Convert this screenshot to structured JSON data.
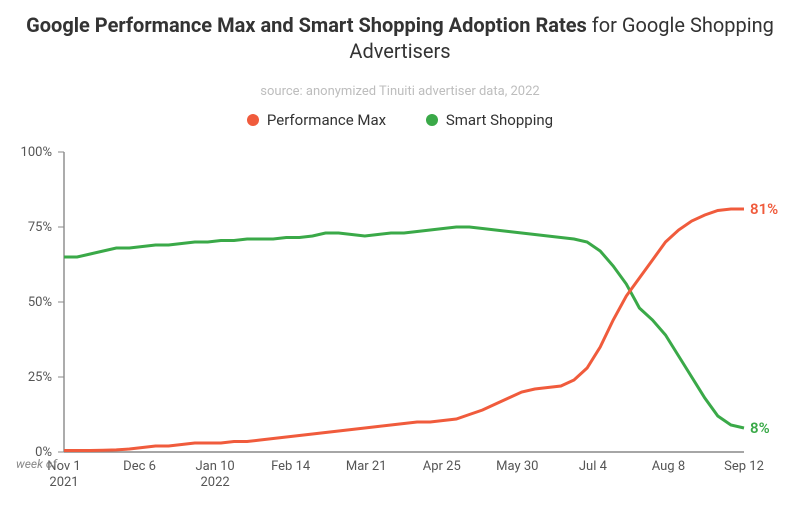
{
  "title_bold": "Google Performance Max and Smart Shopping Adoption Rates",
  "title_rest": " for Google Shopping Advertisers",
  "source": "source: anonymized Tinuiti advertiser data, 2022",
  "legend": {
    "pmax": {
      "label": "Performance Max",
      "color": "#f05b3c"
    },
    "smart": {
      "label": "Smart Shopping",
      "color": "#3aa948"
    }
  },
  "chart": {
    "type": "line",
    "background_color": "#ffffff",
    "axis_color": "#888888",
    "tick_color": "#555555",
    "ylim": [
      0,
      100
    ],
    "ytick_step": 25,
    "ytick_format_suffix": "%",
    "x_axis_note": "week of",
    "x_categories": [
      "Nov 1",
      "Dec 6",
      "Jan 10",
      "Feb 14",
      "Mar 21",
      "Apr 25",
      "May 30",
      "Jul 4",
      "Aug 8",
      "Sep 12"
    ],
    "x_year_labels": {
      "0": "2021",
      "2": "2022"
    },
    "line_width": 3,
    "series": {
      "pmax": {
        "color": "#f05b3c",
        "end_label": "81%",
        "values": [
          0.5,
          0.5,
          0.5,
          0.6,
          0.7,
          1,
          1.5,
          2,
          2,
          2.5,
          3,
          3,
          3,
          3.5,
          3.5,
          4,
          4.5,
          5,
          5.5,
          6,
          6.5,
          7,
          7.5,
          8,
          8.5,
          9,
          9.5,
          10,
          10,
          10.5,
          11,
          12.5,
          14,
          16,
          18,
          20,
          21,
          21.5,
          22,
          24,
          28,
          35,
          44,
          52,
          58,
          64,
          70,
          74,
          77,
          79,
          80.5,
          81,
          81
        ]
      },
      "smart": {
        "color": "#3aa948",
        "end_label": "8%",
        "values": [
          65,
          65,
          66,
          67,
          68,
          68,
          68.5,
          69,
          69,
          69.5,
          70,
          70,
          70.5,
          70.5,
          71,
          71,
          71,
          71.5,
          71.5,
          72,
          73,
          73,
          72.5,
          72,
          72.5,
          73,
          73,
          73.5,
          74,
          74.5,
          75,
          75,
          74.5,
          74,
          73.5,
          73,
          72.5,
          72,
          71.5,
          71,
          70,
          67,
          62,
          56,
          48,
          44,
          39,
          32,
          25,
          18,
          12,
          9,
          8
        ]
      }
    }
  }
}
